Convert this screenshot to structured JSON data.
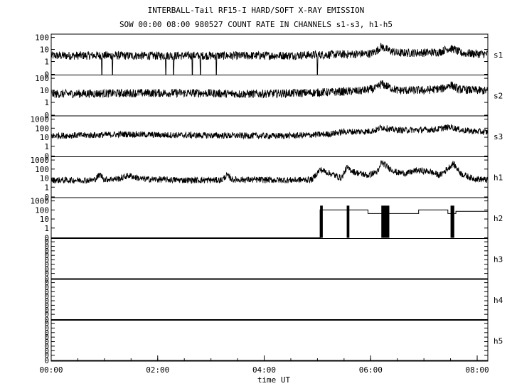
{
  "chart_data": {
    "type": "line",
    "title": "INTERBALL-Tail RF15-I HARD/SOFT X-RAY EMISSION",
    "subtitle": "SOW 00:00 08:00 980527  COUNT RATE IN CHANNELS s1-s3, h1-h5",
    "xlabel": "time UT",
    "x_ticks": [
      "00:00",
      "02:00",
      "04:00",
      "06:00",
      "08:00"
    ],
    "x_range_hours": [
      0,
      8.2
    ],
    "y_scale": "log",
    "grid": false,
    "panels": [
      {
        "name": "s1",
        "ticks": [
          "100",
          "10",
          "1",
          "0"
        ],
        "points": [
          [
            0,
            3
          ],
          [
            0.9,
            3.2
          ],
          [
            1.8,
            3
          ],
          [
            2.7,
            3.1
          ],
          [
            3.6,
            3
          ],
          [
            4.5,
            3.2
          ],
          [
            5.0,
            3.6
          ],
          [
            5.6,
            4
          ],
          [
            6.0,
            4.5
          ],
          [
            6.12,
            8
          ],
          [
            6.2,
            18
          ],
          [
            6.3,
            10
          ],
          [
            6.5,
            5
          ],
          [
            7.0,
            5.5
          ],
          [
            7.3,
            6
          ],
          [
            7.45,
            12
          ],
          [
            7.55,
            11
          ],
          [
            7.7,
            5
          ],
          [
            8.2,
            4
          ]
        ],
        "dropouts": [
          0.95,
          1.15,
          2.15,
          2.3,
          2.65,
          2.8,
          3.1,
          5.0
        ]
      },
      {
        "name": "s2",
        "ticks": [
          "100",
          "10",
          "1",
          "0"
        ],
        "points": [
          [
            0,
            5
          ],
          [
            0.9,
            5.5
          ],
          [
            1.8,
            6
          ],
          [
            2.7,
            6
          ],
          [
            3.6,
            5
          ],
          [
            4.0,
            5.2
          ],
          [
            4.7,
            6
          ],
          [
            5.2,
            7
          ],
          [
            5.8,
            9
          ],
          [
            6.1,
            14
          ],
          [
            6.2,
            35
          ],
          [
            6.35,
            18
          ],
          [
            6.5,
            10
          ],
          [
            7.0,
            10
          ],
          [
            7.35,
            14
          ],
          [
            7.5,
            30
          ],
          [
            7.65,
            12
          ],
          [
            8.2,
            9
          ]
        ]
      },
      {
        "name": "s3",
        "ticks": [
          "1000",
          "100",
          "10",
          "1",
          "0"
        ],
        "points": [
          [
            0,
            15
          ],
          [
            0.8,
            17
          ],
          [
            1.4,
            22
          ],
          [
            2.0,
            18
          ],
          [
            2.8,
            16
          ],
          [
            3.6,
            15
          ],
          [
            4.2,
            14
          ],
          [
            4.7,
            16
          ],
          [
            5.2,
            22
          ],
          [
            5.5,
            40
          ],
          [
            5.9,
            42
          ],
          [
            6.1,
            60
          ],
          [
            6.2,
            130
          ],
          [
            6.4,
            70
          ],
          [
            6.6,
            60
          ],
          [
            7.2,
            70
          ],
          [
            7.5,
            140
          ],
          [
            7.7,
            60
          ],
          [
            8.2,
            35
          ]
        ]
      },
      {
        "name": "h1",
        "ticks": [
          "1000",
          "100",
          "10",
          "1",
          "0"
        ],
        "points": [
          [
            0,
            6
          ],
          [
            0.8,
            6
          ],
          [
            0.92,
            25
          ],
          [
            1.0,
            7
          ],
          [
            1.3,
            9
          ],
          [
            1.45,
            20
          ],
          [
            1.7,
            8
          ],
          [
            2.5,
            6
          ],
          [
            3.2,
            6
          ],
          [
            3.3,
            20
          ],
          [
            3.4,
            7
          ],
          [
            4.5,
            6
          ],
          [
            4.9,
            7
          ],
          [
            5.05,
            90
          ],
          [
            5.25,
            30
          ],
          [
            5.45,
            10
          ],
          [
            5.55,
            140
          ],
          [
            5.7,
            45
          ],
          [
            5.95,
            20
          ],
          [
            6.15,
            60
          ],
          [
            6.2,
            600
          ],
          [
            6.35,
            120
          ],
          [
            6.5,
            40
          ],
          [
            6.7,
            35
          ],
          [
            6.85,
            70
          ],
          [
            7.1,
            55
          ],
          [
            7.3,
            20
          ],
          [
            7.45,
            120
          ],
          [
            7.55,
            400
          ],
          [
            7.7,
            30
          ],
          [
            7.9,
            10
          ],
          [
            8.2,
            6
          ]
        ]
      },
      {
        "name": "h2",
        "ticks": [
          "1000",
          "100",
          "10",
          "1",
          "0"
        ],
        "steps": [
          [
            5.05,
            5.55,
            100
          ],
          [
            5.55,
            5.95,
            100
          ],
          [
            5.95,
            6.15,
            40
          ],
          [
            6.15,
            6.9,
            40
          ],
          [
            6.9,
            7.45,
            100
          ],
          [
            7.45,
            7.6,
            40
          ],
          [
            7.6,
            8.2,
            70
          ]
        ],
        "bursts": [
          [
            5.05,
            5.1
          ],
          [
            5.55,
            5.6
          ],
          [
            6.2,
            6.35
          ],
          [
            7.5,
            7.57
          ]
        ]
      },
      {
        "name": "h3",
        "ticks": [
          "0",
          "0",
          "0",
          "0",
          "0",
          "0",
          "0",
          "0",
          "0"
        ]
      },
      {
        "name": "h4",
        "ticks": [
          "0",
          "0",
          "0",
          "0",
          "0",
          "0",
          "0",
          "0",
          "0"
        ]
      },
      {
        "name": "h5",
        "ticks": [
          "0",
          "0",
          "0",
          "0",
          "0",
          "0",
          "0",
          "0",
          "0"
        ]
      }
    ]
  }
}
